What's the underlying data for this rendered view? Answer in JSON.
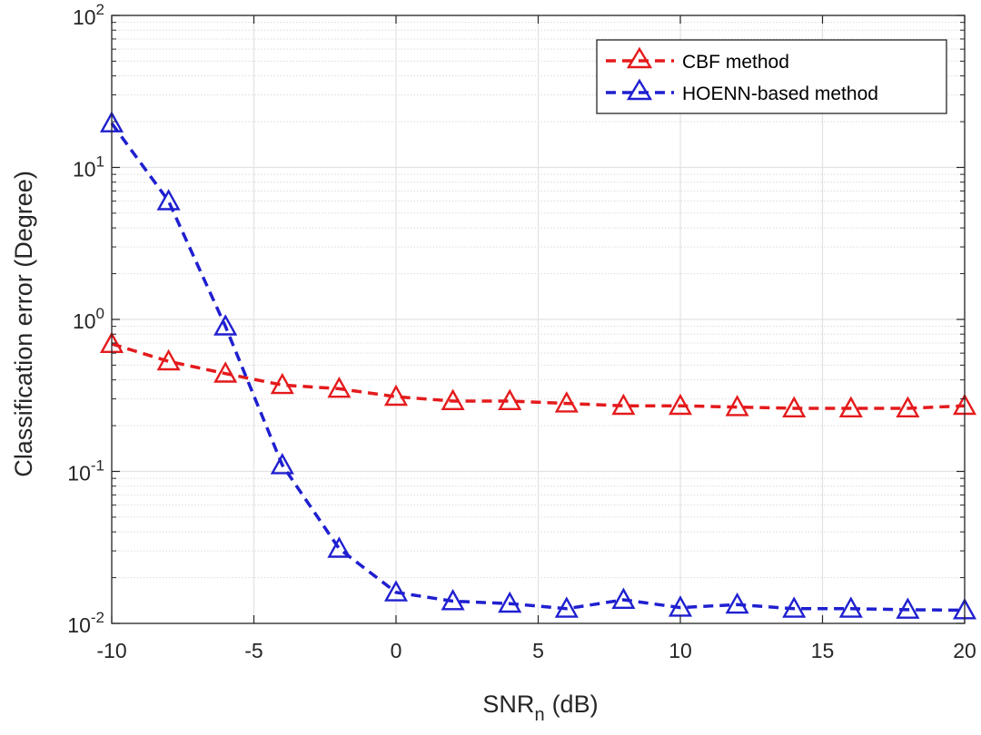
{
  "chart_data": {
    "type": "line",
    "yscale": "log",
    "xlabel": "SNR",
    "xlabel_subscript": "n",
    "xlabel_unit": "(dB)",
    "ylabel": "Classification error (Degree)",
    "xlim": [
      -10,
      20
    ],
    "ylim": [
      0.01,
      100
    ],
    "xticks": [
      -10,
      -5,
      0,
      5,
      10,
      15,
      20
    ],
    "xtick_labels": [
      "-10",
      "-5",
      "0",
      "5",
      "10",
      "15",
      "20"
    ],
    "ytick_exponents": [
      "-2",
      "-1",
      "0",
      "1",
      "2"
    ],
    "ytick_base": "10",
    "grid": true,
    "legend_location": "top-right",
    "x": [
      -10,
      -8,
      -6,
      -4,
      -2,
      0,
      2,
      4,
      6,
      8,
      10,
      12,
      14,
      16,
      18,
      20
    ],
    "series": [
      {
        "name": "CBF method",
        "color": "#e41a1c",
        "marker": "triangle",
        "linestyle": "dashed",
        "values": [
          0.69,
          0.53,
          0.44,
          0.37,
          0.35,
          0.31,
          0.29,
          0.29,
          0.28,
          0.27,
          0.27,
          0.265,
          0.26,
          0.26,
          0.26,
          0.27
        ]
      },
      {
        "name": "HOENN-based method",
        "color": "#1f1fd0",
        "marker": "triangle",
        "linestyle": "dashed",
        "values": [
          19.5,
          6.0,
          0.9,
          0.11,
          0.031,
          0.016,
          0.014,
          0.0135,
          0.0125,
          0.0143,
          0.0127,
          0.0133,
          0.0125,
          0.0125,
          0.0123,
          0.0122
        ]
      }
    ]
  }
}
